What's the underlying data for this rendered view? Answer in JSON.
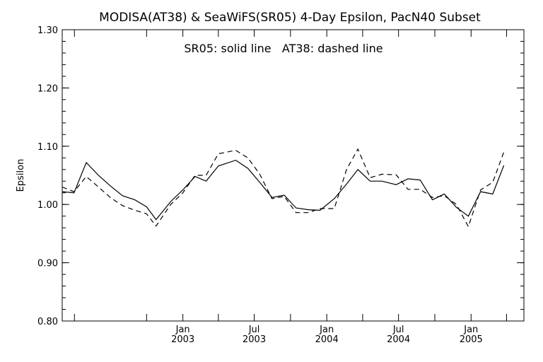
{
  "chart_data": {
    "type": "line",
    "title": "MODISA(AT38) & SeaWiFS(SR05) 4-Day Epsilon, PacN40 Subset",
    "annotation": "SR05: solid line   AT38: dashed line",
    "ylabel": "Epsilon",
    "xlabel": "",
    "ylim": [
      0.8,
      1.3
    ],
    "yticks": [
      "0.80",
      "0.90",
      "1.00",
      "1.10",
      "1.20",
      "1.30"
    ],
    "xlim": [
      "2002-03-01",
      "2005-05-15"
    ],
    "xticks": [
      {
        "month": "Jan",
        "year": "2003",
        "date": "2003-01-01"
      },
      {
        "month": "Jul",
        "year": "2003",
        "date": "2003-07-01"
      },
      {
        "month": "Jan",
        "year": "2004",
        "date": "2004-01-01"
      },
      {
        "month": "Jul",
        "year": "2004",
        "date": "2004-07-01"
      },
      {
        "month": "Jan",
        "year": "2005",
        "date": "2005-01-01"
      }
    ],
    "grid": false,
    "series": [
      {
        "name": "SR05",
        "style": "solid",
        "color": "#000000",
        "points": [
          [
            "2002-03-01",
            1.022
          ],
          [
            "2002-03-31",
            1.02
          ],
          [
            "2002-05-01",
            1.072
          ],
          [
            "2002-06-01",
            1.05
          ],
          [
            "2002-07-01",
            1.032
          ],
          [
            "2002-08-01",
            1.015
          ],
          [
            "2002-09-01",
            1.008
          ],
          [
            "2002-10-01",
            0.996
          ],
          [
            "2002-10-25",
            0.974
          ],
          [
            "2002-12-01",
            1.005
          ],
          [
            "2003-01-01",
            1.025
          ],
          [
            "2003-02-01",
            1.048
          ],
          [
            "2003-03-01",
            1.04
          ],
          [
            "2003-04-01",
            1.066
          ],
          [
            "2003-05-15",
            1.076
          ],
          [
            "2003-06-15",
            1.062
          ],
          [
            "2003-07-15",
            1.038
          ],
          [
            "2003-08-15",
            1.012
          ],
          [
            "2003-09-15",
            1.016
          ],
          [
            "2003-10-15",
            0.994
          ],
          [
            "2003-11-15",
            0.991
          ],
          [
            "2003-12-15",
            0.99
          ],
          [
            "2004-01-20",
            1.01
          ],
          [
            "2004-02-20",
            1.035
          ],
          [
            "2004-03-20",
            1.06
          ],
          [
            "2004-04-20",
            1.04
          ],
          [
            "2004-05-20",
            1.04
          ],
          [
            "2004-06-25",
            1.034
          ],
          [
            "2004-07-25",
            1.044
          ],
          [
            "2004-08-25",
            1.042
          ],
          [
            "2004-09-25",
            1.008
          ],
          [
            "2004-10-25",
            1.018
          ],
          [
            "2004-11-25",
            0.995
          ],
          [
            "2004-12-25",
            0.98
          ],
          [
            "2005-01-25",
            1.022
          ],
          [
            "2005-02-25",
            1.018
          ],
          [
            "2005-03-25",
            1.067
          ]
        ]
      },
      {
        "name": "AT38",
        "style": "dashed",
        "color": "#000000",
        "points": [
          [
            "2002-03-01",
            1.03
          ],
          [
            "2002-03-31",
            1.022
          ],
          [
            "2002-05-01",
            1.048
          ],
          [
            "2002-06-01",
            1.03
          ],
          [
            "2002-07-01",
            1.012
          ],
          [
            "2002-08-01",
            0.998
          ],
          [
            "2002-09-01",
            0.99
          ],
          [
            "2002-10-01",
            0.984
          ],
          [
            "2002-10-25",
            0.963
          ],
          [
            "2002-12-01",
            1.0
          ],
          [
            "2003-01-01",
            1.02
          ],
          [
            "2003-02-01",
            1.05
          ],
          [
            "2003-03-01",
            1.05
          ],
          [
            "2003-04-01",
            1.087
          ],
          [
            "2003-05-15",
            1.093
          ],
          [
            "2003-06-15",
            1.08
          ],
          [
            "2003-07-15",
            1.052
          ],
          [
            "2003-08-15",
            1.01
          ],
          [
            "2003-09-15",
            1.014
          ],
          [
            "2003-10-15",
            0.986
          ],
          [
            "2003-11-15",
            0.986
          ],
          [
            "2003-12-15",
            0.993
          ],
          [
            "2004-01-20",
            0.993
          ],
          [
            "2004-02-20",
            1.06
          ],
          [
            "2004-03-20",
            1.095
          ],
          [
            "2004-04-20",
            1.046
          ],
          [
            "2004-05-20",
            1.052
          ],
          [
            "2004-06-25",
            1.051
          ],
          [
            "2004-07-25",
            1.026
          ],
          [
            "2004-08-25",
            1.026
          ],
          [
            "2004-09-25",
            1.012
          ],
          [
            "2004-10-25",
            1.015
          ],
          [
            "2004-11-25",
            1.0
          ],
          [
            "2004-12-25",
            0.962
          ],
          [
            "2005-01-25",
            1.025
          ],
          [
            "2005-02-25",
            1.038
          ],
          [
            "2005-03-25",
            1.09
          ]
        ]
      }
    ]
  }
}
